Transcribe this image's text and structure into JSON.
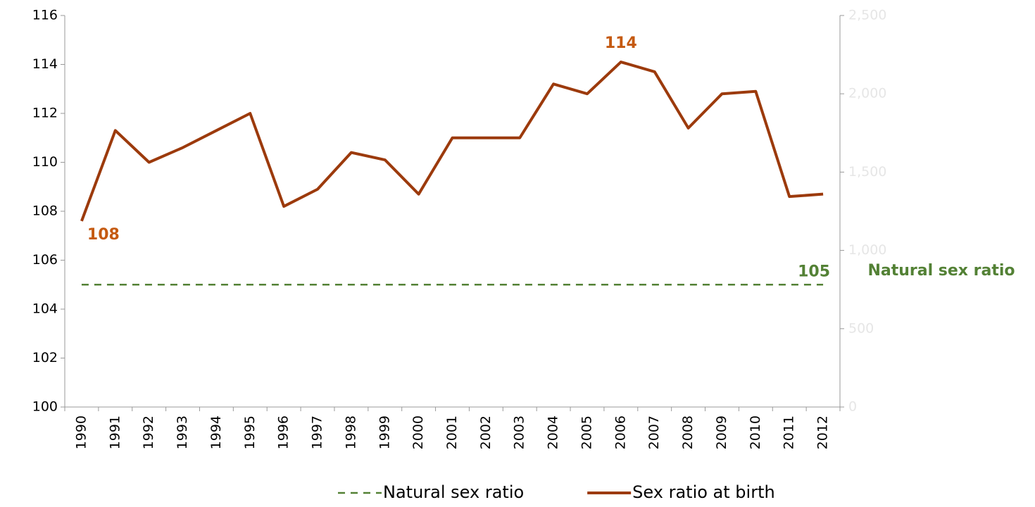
{
  "chart_data": {
    "type": "line",
    "categories": [
      "1990",
      "1991",
      "1992",
      "1993",
      "1994",
      "1995",
      "1996",
      "1997",
      "1998",
      "1999",
      "2000",
      "2001",
      "2002",
      "2003",
      "2004",
      "2005",
      "2006",
      "2007",
      "2008",
      "2009",
      "2010",
      "2011",
      "2012"
    ],
    "series": [
      {
        "name": "Natural sex ratio",
        "color": "#538135",
        "dashed": true,
        "values": [
          105,
          105,
          105,
          105,
          105,
          105,
          105,
          105,
          105,
          105,
          105,
          105,
          105,
          105,
          105,
          105,
          105,
          105,
          105,
          105,
          105,
          105,
          105
        ],
        "value_labels": [
          null,
          null,
          null,
          null,
          null,
          null,
          null,
          null,
          null,
          null,
          null,
          null,
          null,
          null,
          null,
          null,
          null,
          null,
          null,
          null,
          null,
          null,
          "105"
        ]
      },
      {
        "name": "Sex ratio at birth",
        "color": "#9c3a0c",
        "dashed": false,
        "values": [
          107.6,
          111.3,
          110.0,
          110.6,
          111.3,
          112.0,
          108.2,
          108.9,
          110.4,
          110.1,
          108.7,
          111.0,
          111.0,
          111.0,
          113.2,
          112.8,
          114.1,
          113.7,
          111.4,
          112.8,
          112.9,
          108.6,
          108.7
        ],
        "value_labels": [
          "108",
          null,
          null,
          null,
          null,
          null,
          null,
          null,
          null,
          null,
          null,
          null,
          null,
          null,
          null,
          null,
          "114",
          null,
          null,
          null,
          null,
          null,
          null
        ]
      }
    ],
    "label_color": "#c55a11",
    "annotation": "Natural sex ratio",
    "ylim": [
      100,
      116
    ],
    "yticks": [
      100,
      102,
      104,
      106,
      108,
      110,
      112,
      114,
      116
    ],
    "y2lim": [
      0,
      2500
    ],
    "y2ticks": [
      0,
      500,
      {
        "value": 1000,
        "label": "1,000"
      },
      {
        "value": 1500,
        "label": "1,500"
      },
      {
        "value": 2000,
        "label": "2,000"
      },
      {
        "value": 2500,
        "label": "2,500"
      }
    ],
    "grid": false
  }
}
